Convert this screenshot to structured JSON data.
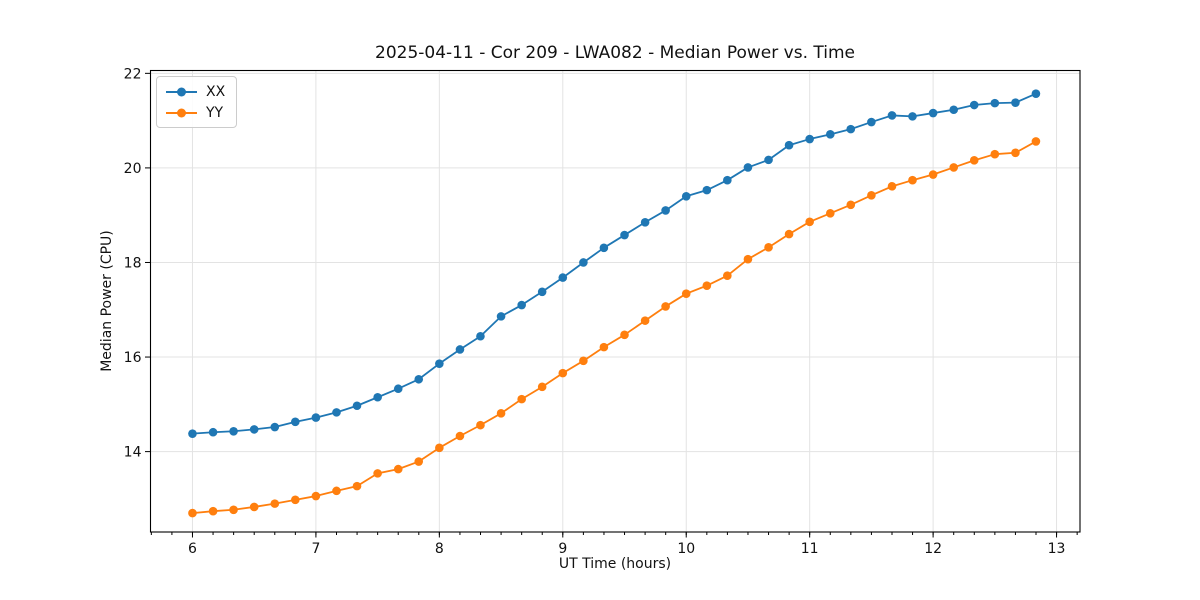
{
  "chart_data": {
    "type": "line",
    "title": "2025-04-11 - Cor 209 - LWA082 - Median Power vs. Time",
    "xlabel": "UT Time (hours)",
    "ylabel": "Median Power (CPU)",
    "xlim": [
      5.66,
      13.19
    ],
    "ylim": [
      12.3,
      22.06
    ],
    "xticks": [
      6,
      7,
      8,
      9,
      10,
      11,
      12,
      13
    ],
    "yticks": [
      14,
      16,
      18,
      20,
      22
    ],
    "x_minor_step_hours": 0.16667,
    "grid": true,
    "legend_position": "upper-left",
    "marker": "circle",
    "x": [
      6.0,
      6.167,
      6.333,
      6.5,
      6.667,
      6.833,
      7.0,
      7.167,
      7.333,
      7.5,
      7.667,
      7.833,
      8.0,
      8.167,
      8.333,
      8.5,
      8.667,
      8.833,
      9.0,
      9.167,
      9.333,
      9.5,
      9.667,
      9.833,
      10.0,
      10.167,
      10.333,
      10.5,
      10.667,
      10.833,
      11.0,
      11.167,
      11.333,
      11.5,
      11.667,
      11.833,
      12.0,
      12.167,
      12.333,
      12.5,
      12.667,
      12.833
    ],
    "series": [
      {
        "name": "XX",
        "color": "#1f77b4",
        "values": [
          14.38,
          14.41,
          14.43,
          14.47,
          14.52,
          14.63,
          14.72,
          14.83,
          14.97,
          15.15,
          15.33,
          15.53,
          15.86,
          16.16,
          16.44,
          16.86,
          17.1,
          17.38,
          17.68,
          18.0,
          18.31,
          18.58,
          18.85,
          19.1,
          19.4,
          19.53,
          19.74,
          20.01,
          20.17,
          20.48,
          20.61,
          20.71,
          20.82,
          20.97,
          21.11,
          21.09,
          21.16,
          21.23,
          21.33,
          21.37,
          21.38,
          21.57
        ]
      },
      {
        "name": "YY",
        "color": "#ff7f0e",
        "values": [
          12.7,
          12.74,
          12.77,
          12.83,
          12.9,
          12.98,
          13.06,
          13.17,
          13.27,
          13.54,
          13.63,
          13.79,
          14.08,
          14.33,
          14.56,
          14.81,
          15.11,
          15.37,
          15.66,
          15.92,
          16.21,
          16.47,
          16.77,
          17.07,
          17.34,
          17.51,
          17.72,
          18.07,
          18.32,
          18.6,
          18.86,
          19.04,
          19.22,
          19.42,
          19.61,
          19.74,
          19.86,
          20.01,
          20.16,
          20.29,
          20.32,
          20.56
        ]
      }
    ],
    "style": {
      "grid_color": "#e3e3e3",
      "spine_color": "#000000",
      "tick_color": "#000000",
      "background": "#ffffff"
    }
  }
}
